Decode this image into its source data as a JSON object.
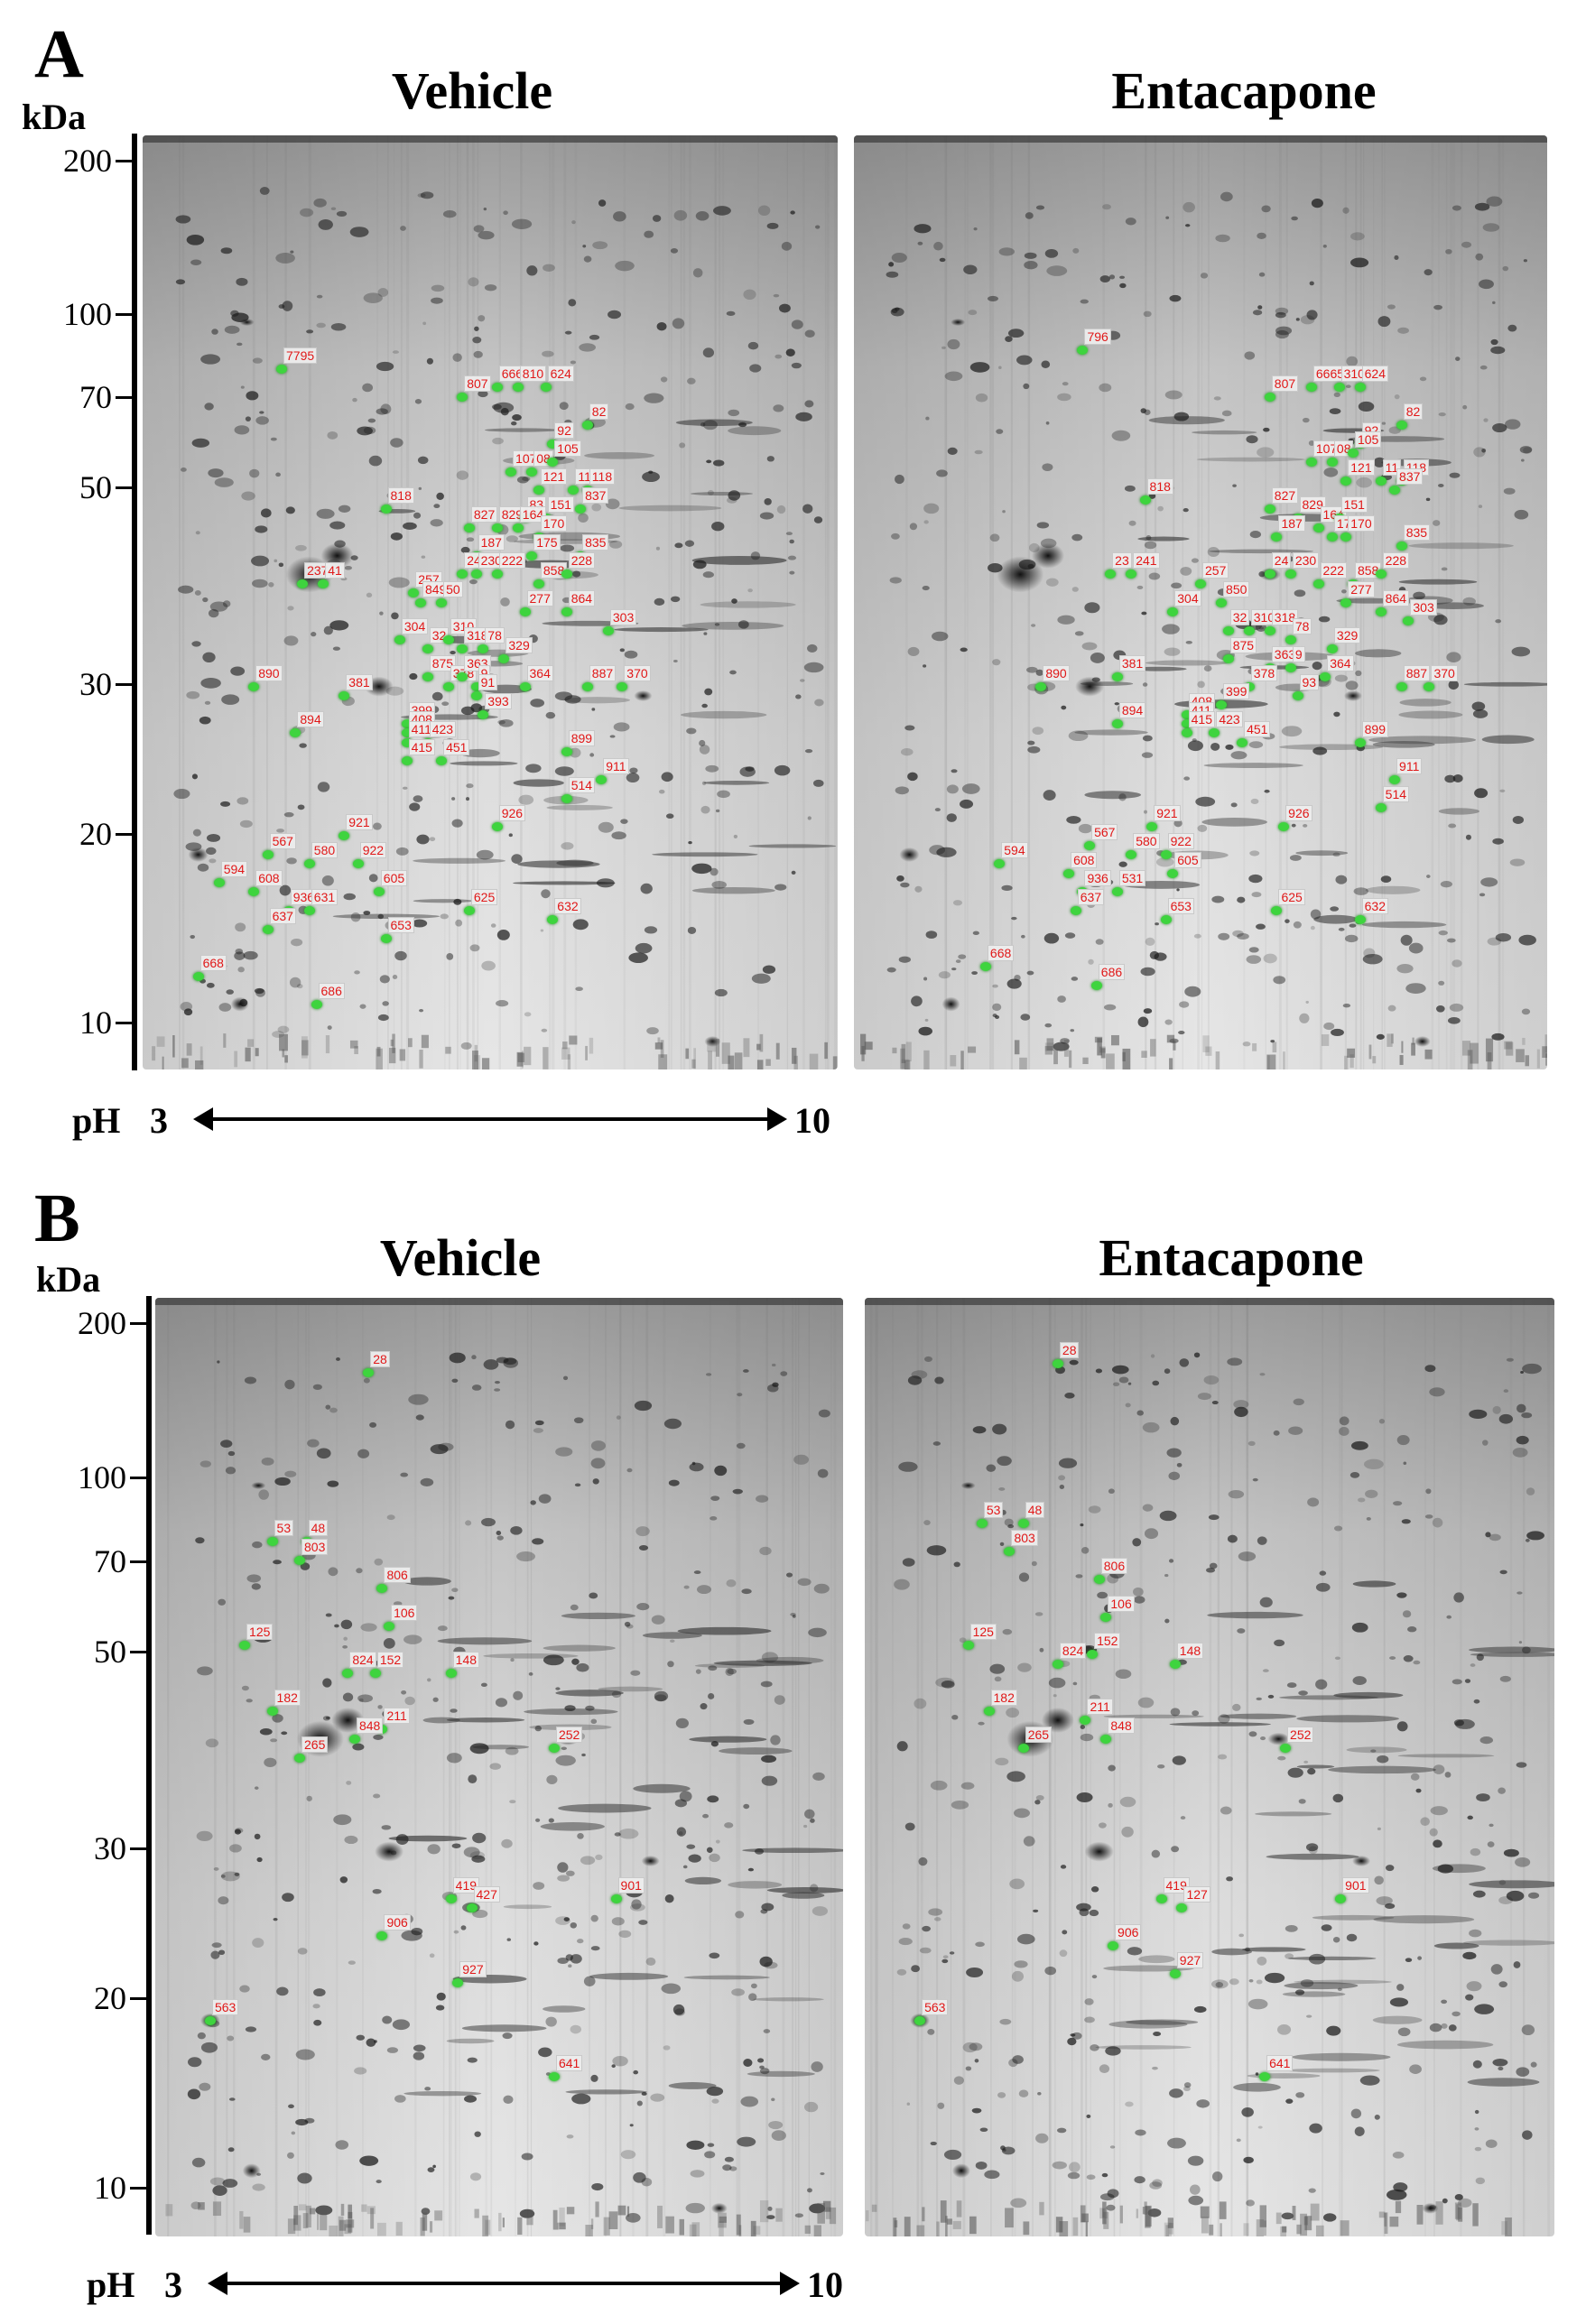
{
  "figure": {
    "panels": [
      {
        "letter": "A",
        "kda_label": "kDa",
        "mw_ticks": [
          "200",
          "100",
          "70",
          "50",
          "30",
          "20",
          "10"
        ],
        "ph_label": "pH",
        "ph_start": "3",
        "ph_end": "10",
        "gels": [
          {
            "title": "Vehicle",
            "spots": [
              "7795",
              "807",
              "6665",
              "810",
              "624",
              "82",
              "92",
              "107",
              "08",
              "105",
              "121",
              "11",
              "118",
              "837",
              "818",
              "827",
              "829",
              "83",
              "151",
              "164",
              "170",
              "187",
              "175",
              "835",
              "242",
              "230",
              "222",
              "858",
              "228",
              "257",
              "237",
              "41",
              "849",
              "50",
              "864",
              "277",
              "304",
              "32",
              "310",
              "318",
              "78",
              "329",
              "303",
              "875",
              "378",
              "363",
              "9",
              "91",
              "364",
              "887",
              "370",
              "890",
              "381",
              "399",
              "408",
              "411",
              "423",
              "393",
              "415",
              "894",
              "451",
              "899",
              "911",
              "514",
              "921",
              "926",
              "567",
              "580",
              "922",
              "594",
              "608",
              "605",
              "936",
              "631",
              "625",
              "632",
              "637",
              "653",
              "668",
              "686"
            ]
          },
          {
            "title": "Entacapone",
            "spots": [
              "796",
              "807",
              "6665",
              "310",
              "624",
              "82",
              "92",
              "107",
              "08",
              "105",
              "121",
              "11",
              "118",
              "837",
              "818",
              "827",
              "829",
              "164",
              "151",
              "187",
              "175",
              "170",
              "835",
              "23",
              "241",
              "257",
              "24",
              "230",
              "222",
              "858",
              "228",
              "304",
              "850",
              "277",
              "864",
              "303",
              "32",
              "310",
              "318",
              "78",
              "329",
              "875",
              "363",
              "9",
              "364",
              "378",
              "381",
              "93",
              "887",
              "370",
              "890",
              "399",
              "408",
              "411",
              "423",
              "415",
              "894",
              "451",
              "899",
              "911",
              "514",
              "921",
              "926",
              "567",
              "580",
              "922",
              "594",
              "608",
              "605",
              "936",
              "531",
              "637",
              "653",
              "625",
              "632",
              "668",
              "686"
            ]
          }
        ]
      },
      {
        "letter": "B",
        "kda_label": "kDa",
        "mw_ticks": [
          "200",
          "100",
          "70",
          "50",
          "30",
          "20",
          "10"
        ],
        "ph_label": "pH",
        "ph_start": "3",
        "ph_end": "10",
        "gels": [
          {
            "title": "Vehicle",
            "spots": [
              "28",
              "53",
              "48",
              "803",
              "806",
              "106",
              "125",
              "824",
              "152",
              "148",
              "182",
              "211",
              "848",
              "265",
              "252",
              "419",
              "427",
              "901",
              "906",
              "927",
              "563",
              "641"
            ]
          },
          {
            "title": "Entacapone",
            "spots": [
              "28",
              "53",
              "48",
              "803",
              "806",
              "106",
              "125",
              "824",
              "152",
              "148",
              "182",
              "211",
              "848",
              "265",
              "252",
              "419",
              "127",
              "901",
              "906",
              "927",
              "563",
              "641"
            ]
          }
        ]
      }
    ]
  },
  "colors": {
    "spot_label_text": "#e01818",
    "spot_marker": "#3ed43e",
    "gel_background": "#c8c8c8"
  }
}
